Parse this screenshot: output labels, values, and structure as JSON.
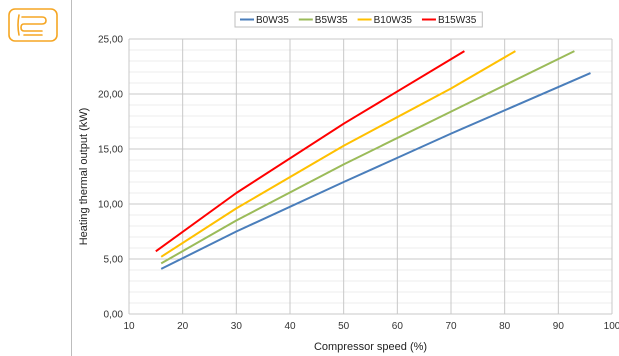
{
  "app_icon": {
    "icon": "floor-heating-pipe-icon",
    "color": "#f5a623"
  },
  "chart_data": {
    "type": "line",
    "title": "",
    "xlabel": "Compressor speed (%)",
    "ylabel": "Heating thermal output (kW)",
    "xlim": [
      10,
      100
    ],
    "ylim": [
      0,
      25
    ],
    "x_ticks": [
      10,
      20,
      30,
      40,
      50,
      60,
      70,
      80,
      90,
      100
    ],
    "y_ticks": [
      "0,00",
      "5,00",
      "10,00",
      "15,00",
      "20,00",
      "25,00"
    ],
    "grid": true,
    "legend_position": "top",
    "series": [
      {
        "name": "B0W35",
        "color": "#4a7ebb",
        "points": [
          [
            16,
            4.1
          ],
          [
            30,
            7.5
          ],
          [
            50,
            12.0
          ],
          [
            70,
            16.4
          ],
          [
            96,
            21.9
          ]
        ]
      },
      {
        "name": "B5W35",
        "color": "#9bbb59",
        "points": [
          [
            16,
            4.6
          ],
          [
            30,
            8.5
          ],
          [
            50,
            13.6
          ],
          [
            70,
            18.4
          ],
          [
            93,
            23.9
          ]
        ]
      },
      {
        "name": "B10W35",
        "color": "#ffc000",
        "points": [
          [
            16,
            5.2
          ],
          [
            30,
            9.6
          ],
          [
            50,
            15.3
          ],
          [
            70,
            20.5
          ],
          [
            82,
            23.9
          ]
        ]
      },
      {
        "name": "B15W35",
        "color": "#ff0000",
        "points": [
          [
            15,
            5.7
          ],
          [
            30,
            11.0
          ],
          [
            50,
            17.3
          ],
          [
            72.5,
            23.9
          ]
        ]
      }
    ]
  }
}
